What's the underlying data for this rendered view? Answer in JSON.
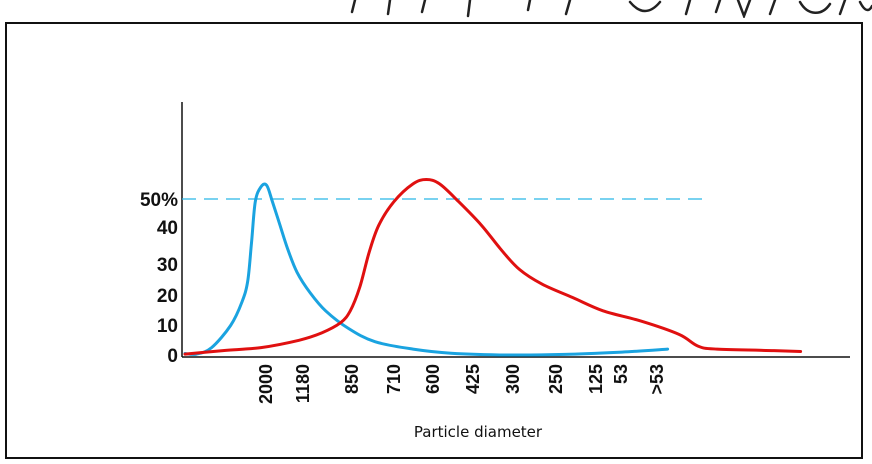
{
  "chart_data": {
    "type": "line",
    "xlabel": "Particle diameter",
    "ylabel": "",
    "y_ticks": [
      "0",
      "10",
      "20",
      "30",
      "40",
      "50%"
    ],
    "ylim": [
      0,
      80
    ],
    "x_ticks": [
      "2000",
      "1180",
      "850",
      "710",
      "600",
      "425",
      "300",
      "250",
      "125",
      "53",
      ">53"
    ],
    "reference_line": {
      "y": 50,
      "style": "dashed",
      "color": "#29b6e8"
    },
    "grid": false,
    "legend": "none",
    "series": [
      {
        "color": "#1aa3e0",
        "points": [
          [
            1.0,
            0.5
          ],
          [
            1.3,
            0.3
          ],
          [
            1.7,
            2.5
          ],
          [
            2.2,
            10
          ],
          [
            2.5,
            18
          ],
          [
            2.65,
            25
          ],
          [
            2.75,
            38
          ],
          [
            2.85,
            52
          ],
          [
            3.0,
            57
          ],
          [
            3.15,
            57.5
          ],
          [
            3.3,
            52
          ],
          [
            3.5,
            44
          ],
          [
            3.7,
            36
          ],
          [
            3.95,
            28
          ],
          [
            4.3,
            21
          ],
          [
            4.7,
            15
          ],
          [
            5.3,
            9
          ],
          [
            6.0,
            4.5
          ],
          [
            7.0,
            2
          ],
          [
            8.0,
            0.6
          ],
          [
            9.5,
            0
          ],
          [
            11.0,
            0.2
          ],
          [
            12.5,
            1
          ],
          [
            13.7,
            2
          ]
        ]
      },
      {
        "color": "#e01010",
        "points": [
          [
            1.0,
            0.3
          ],
          [
            2.0,
            1.5
          ],
          [
            3.0,
            2.5
          ],
          [
            4.0,
            5
          ],
          [
            4.6,
            7.5
          ],
          [
            5.1,
            11
          ],
          [
            5.35,
            15
          ],
          [
            5.6,
            23
          ],
          [
            5.85,
            35
          ],
          [
            6.1,
            44
          ],
          [
            6.5,
            52
          ],
          [
            7.0,
            58
          ],
          [
            7.35,
            59.5
          ],
          [
            7.7,
            58
          ],
          [
            8.2,
            52
          ],
          [
            8.8,
            44
          ],
          [
            9.3,
            36
          ],
          [
            9.8,
            29
          ],
          [
            10.4,
            24
          ],
          [
            11.2,
            19.5
          ],
          [
            12.0,
            15
          ],
          [
            13.0,
            11.5
          ],
          [
            14.0,
            7
          ],
          [
            14.5,
            3
          ],
          [
            15.0,
            2
          ],
          [
            16.5,
            1.5
          ],
          [
            17.2,
            1.2
          ]
        ]
      }
    ]
  },
  "decor": {
    "top_strip_color": "#111111"
  }
}
